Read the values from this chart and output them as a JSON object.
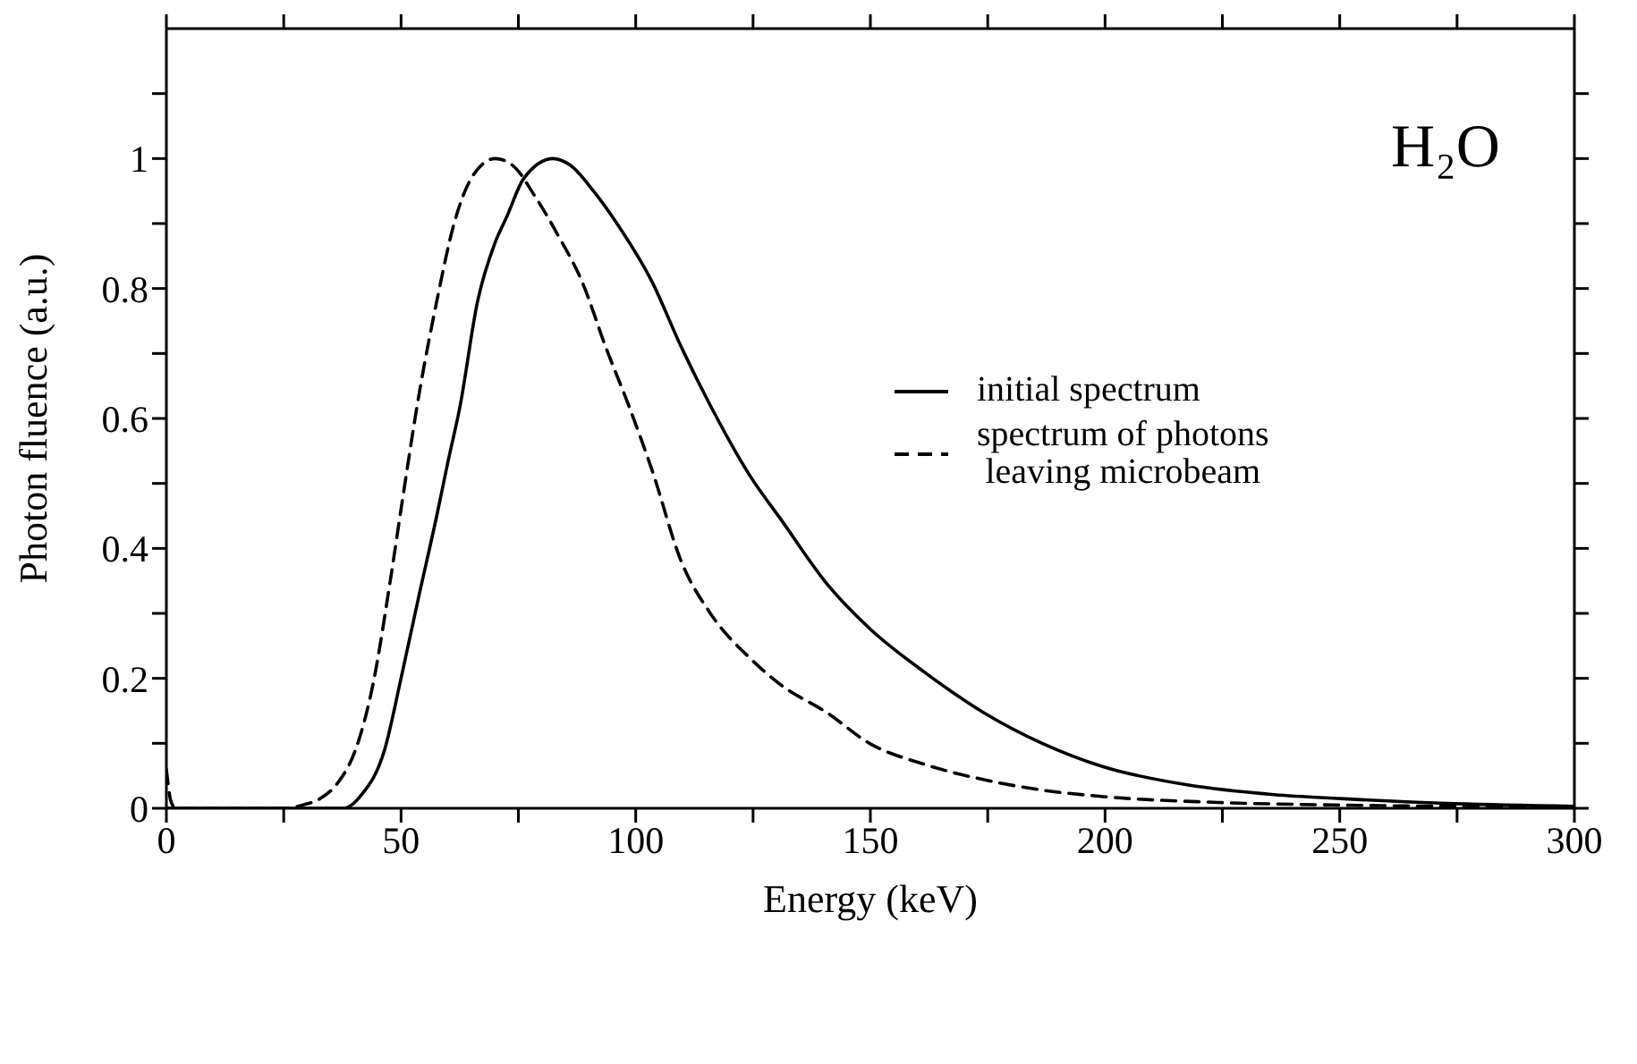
{
  "chart_data": {
    "type": "line",
    "xlabel": "Energy (keV)",
    "ylabel": "Photon fluence (a.u.)",
    "annotations": [
      "H₂O"
    ],
    "xlim": [
      0,
      300
    ],
    "xticks": [
      0,
      {
        "value": 25,
        "label": null
      },
      50,
      {
        "value": 75,
        "label": null
      },
      100,
      {
        "value": 125,
        "label": null
      },
      150,
      {
        "value": 175,
        "label": null
      },
      200,
      {
        "value": 225,
        "label": null
      },
      250,
      {
        "value": 275,
        "label": null
      },
      300
    ],
    "ylim": [
      0,
      1.2
    ],
    "yticks": [
      0,
      {
        "value": 0.1,
        "label": null
      },
      0.2,
      {
        "value": 0.3,
        "label": null
      },
      0.4,
      {
        "value": 0.5,
        "label": null
      },
      0.6,
      {
        "value": 0.7,
        "label": null
      },
      0.8,
      {
        "value": 0.9,
        "label": null
      },
      1,
      {
        "value": 1.1,
        "label": null
      }
    ],
    "legend": "right",
    "marker": "none",
    "series": [
      {
        "name": "initial spectrum",
        "color": "#000000",
        "line_style": "solid",
        "x": [
          0,
          20,
          37.8,
          41.5,
          46.5,
          50,
          53.9,
          57.6,
          59.9,
          62.6,
          66.3,
          70,
          72.5,
          76.2,
          82.4,
          86,
          91,
          96,
          103.5,
          109.7,
          115.9,
          124.5,
          130.9,
          140.8,
          149.8,
          161.8,
          174.2,
          186.6,
          199.6,
          217.5,
          236,
          250,
          274.6,
          300
        ],
        "values": [
          0,
          0,
          0,
          0.02,
          0.09,
          0.2,
          0.33,
          0.45,
          0.53,
          0.62,
          0.78,
          0.87,
          0.91,
          0.97,
          1,
          0.99,
          0.95,
          0.9,
          0.81,
          0.71,
          0.62,
          0.51,
          0.445,
          0.345,
          0.277,
          0.208,
          0.147,
          0.1,
          0.064,
          0.036,
          0.021,
          0.015,
          0.007,
          0.003
        ]
      },
      {
        "name": "spectrum of photons leaving microbeam",
        "color": "#000000",
        "line_style": "dashed",
        "x": [
          0,
          1,
          2,
          25,
          29,
          32.8,
          36.6,
          40.3,
          44,
          47.7,
          50.2,
          53.9,
          57.6,
          61.3,
          65,
          70,
          73.7,
          78.7,
          83.6,
          88.6,
          93.6,
          98.5,
          103.5,
          109.7,
          115.9,
          124.5,
          130.9,
          140.8,
          149.8,
          161.8,
          174.2,
          186.6,
          199.6,
          224,
          250,
          300
        ],
        "values": [
          0.06,
          0.01,
          0,
          0,
          0.005,
          0.015,
          0.04,
          0.09,
          0.19,
          0.35,
          0.47,
          0.64,
          0.78,
          0.9,
          0.97,
          1,
          0.99,
          0.94,
          0.88,
          0.81,
          0.71,
          0.62,
          0.52,
          0.38,
          0.3,
          0.23,
          0.19,
          0.147,
          0.1,
          0.067,
          0.044,
          0.028,
          0.018,
          0.009,
          0.005,
          0.002
        ]
      }
    ]
  }
}
